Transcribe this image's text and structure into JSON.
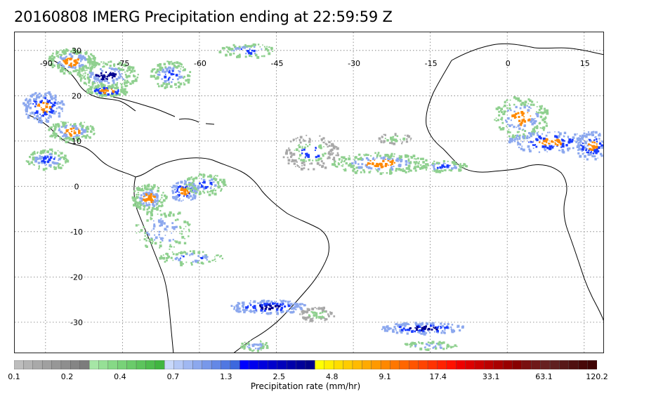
{
  "title": "20160808 IMERG Precipitation ending at 22:59:59 Z",
  "map": {
    "projection": "cylindrical",
    "lon_range": [
      -96,
      19
    ],
    "lat_range": [
      -37,
      34
    ],
    "grid": "dotted",
    "lon_labels": [
      "-90",
      "-75",
      "-60",
      "-45",
      "-30",
      "-15",
      "0",
      "15"
    ],
    "lat_labels": [
      "30",
      "20",
      "10",
      "0",
      "-10",
      "-20",
      "-30"
    ],
    "coastline_color": "#000000"
  },
  "colorbar": {
    "title": "Precipitation rate (mm/hr)",
    "tick_labels": [
      "0.1",
      "0.2",
      "0.4",
      "0.7",
      "1.3",
      "2.5",
      "4.8",
      "9.1",
      "17.4",
      "33.1",
      "63.1",
      "120.2"
    ],
    "colors": [
      "#bdbdbd",
      "#b3b3b3",
      "#a9a9a9",
      "#a0a0a0",
      "#979797",
      "#8e8e8e",
      "#858585",
      "#7c7c7c",
      "#a6e6a6",
      "#96e096",
      "#86d986",
      "#78d278",
      "#6acb6a",
      "#5cc45c",
      "#4ebd4e",
      "#40b640",
      "#c8d8fa",
      "#b4c8f6",
      "#a0b8f2",
      "#8ca8ee",
      "#7898ea",
      "#6488e6",
      "#5078e2",
      "#3c68de",
      "#0000ff",
      "#0000ee",
      "#0000dd",
      "#0000cc",
      "#0000bb",
      "#0000aa",
      "#000099",
      "#000088",
      "#ffff00",
      "#ffee00",
      "#ffdd00",
      "#ffcc00",
      "#ffbb00",
      "#ffaa00",
      "#ff9900",
      "#ff8800",
      "#ff7700",
      "#ff6600",
      "#ff5500",
      "#ff4400",
      "#ff3300",
      "#ff2200",
      "#ff1100",
      "#ee0000",
      "#dd0000",
      "#cc0000",
      "#bb0000",
      "#aa0000",
      "#990000",
      "#880000",
      "#7a1010",
      "#701818",
      "#682020",
      "#602020",
      "#581818",
      "#501010",
      "#480808",
      "#400404"
    ]
  },
  "precip_palette": {
    "light": "#8fd08f",
    "gray": "#a8a8a8",
    "lightblue": "#8ca8ee",
    "blue": "#1a3cff",
    "darkblue": "#000090",
    "yellow": "#ffdd00",
    "orange": "#ff8800",
    "red": "#ee1100"
  }
}
